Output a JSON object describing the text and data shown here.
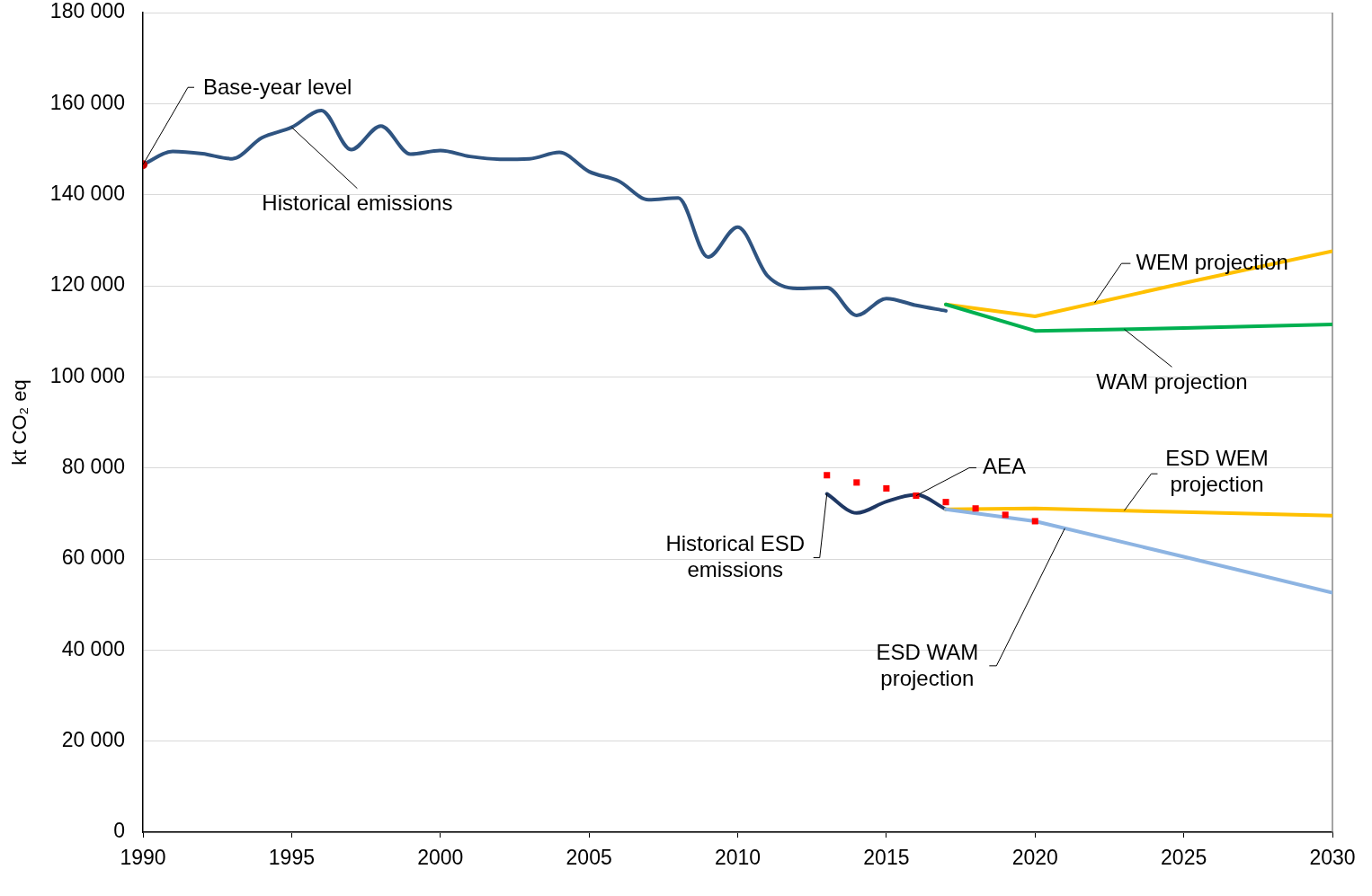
{
  "chart_data": {
    "type": "line",
    "ylabel": "kt CO₂ eq",
    "xlim": [
      1990,
      2030
    ],
    "xticks": [
      1990,
      1995,
      2000,
      2005,
      2010,
      2015,
      2020,
      2025,
      2030
    ],
    "ylim": [
      0,
      180000
    ],
    "yticks": [
      0,
      {
        "value": 20000,
        "label": "20 000"
      },
      {
        "value": 40000,
        "label": "40 000"
      },
      {
        "value": 60000,
        "label": "60 000"
      },
      {
        "value": 80000,
        "label": "80 000"
      },
      {
        "value": 100000,
        "label": "100 000"
      },
      {
        "value": 120000,
        "label": "120 000"
      },
      {
        "value": 140000,
        "label": "140 000"
      },
      {
        "value": 160000,
        "label": "160 000"
      },
      {
        "value": 180000,
        "label": "180 000"
      }
    ],
    "grid": "y",
    "line_style": "solid",
    "series": [
      {
        "name": "Historical emissions",
        "marker": "none",
        "color": "#2f5481",
        "x": [
          1990,
          1991,
          1992,
          1993,
          1994,
          1995,
          1996,
          1997,
          1998,
          1999,
          2000,
          2001,
          2002,
          2003,
          2004,
          2005,
          2006,
          2007,
          2008,
          2009,
          2010,
          2011,
          2012,
          2013,
          2014,
          2015,
          2016,
          2017
        ],
        "values": [
          146600,
          149500,
          149000,
          147900,
          152500,
          154800,
          158500,
          149900,
          155100,
          148900,
          149700,
          148400,
          147800,
          147900,
          149300,
          145100,
          143000,
          138900,
          139300,
          126300,
          132900,
          122200,
          119400,
          119600,
          113500,
          117200,
          115700,
          114500
        ]
      },
      {
        "name": "WEM projection",
        "marker": "none",
        "color": "#ffc000",
        "x": [
          2017,
          2020,
          2025,
          2030
        ],
        "values": [
          115900,
          113300,
          120600,
          127600
        ]
      },
      {
        "name": "WAM projection",
        "marker": "none",
        "color": "#00b050",
        "x": [
          2017,
          2020,
          2025,
          2030
        ],
        "values": [
          115900,
          110100,
          110700,
          111500
        ]
      },
      {
        "name": "Historical ESD emissions",
        "marker": "none",
        "color": "#1f3864",
        "x": [
          2013,
          2014,
          2015,
          2016,
          2017
        ],
        "values": [
          74300,
          70100,
          72600,
          74100,
          70900
        ]
      },
      {
        "name": "ESD WEM projection",
        "marker": "none",
        "color": "#ffc000",
        "x": [
          2017,
          2020,
          2025,
          2030
        ],
        "values": [
          70900,
          71100,
          70300,
          69500
        ]
      },
      {
        "name": "ESD WAM projection",
        "marker": "none",
        "color": "#8db4e2",
        "x": [
          2017,
          2020,
          2025,
          2030
        ],
        "values": [
          70900,
          68300,
          60500,
          52600
        ]
      },
      {
        "name": "AEA",
        "type": "scatter",
        "marker": "square",
        "color": "#ff0000",
        "x": [
          2013,
          2014,
          2015,
          2016,
          2017,
          2018,
          2019,
          2020
        ],
        "values": [
          78400,
          76800,
          75500,
          73900,
          72500,
          71100,
          69700,
          68300
        ]
      },
      {
        "name": "Base-year level",
        "type": "scatter",
        "marker": "circle",
        "color": "#c00000",
        "x": [
          1990
        ],
        "values": [
          146600
        ]
      }
    ]
  }
}
